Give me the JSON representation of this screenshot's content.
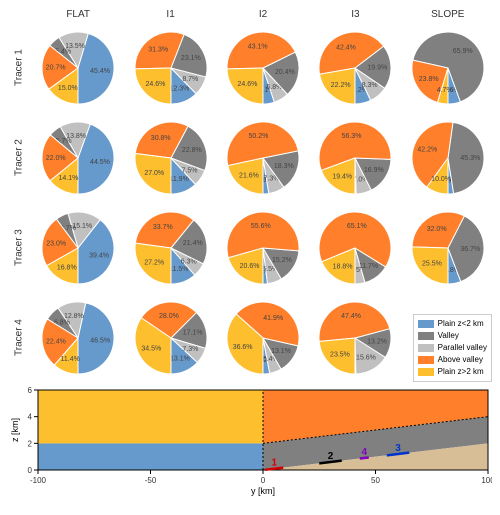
{
  "colors": {
    "plain_low": "#6699cc",
    "valley": "#808080",
    "parallel_valley": "#c0c0c0",
    "above_valley": "#ff7f2a",
    "plain_high": "#fdbf2d",
    "background": "#ffffff",
    "text": "#333333",
    "terrain_ground": "#d8be96"
  },
  "columns": [
    "FLAT",
    "I1",
    "I2",
    "I3",
    "SLOPE"
  ],
  "rows": [
    "Tracer 1",
    "Tracer 2",
    "Tracer 3",
    "Tracer 4"
  ],
  "legend": {
    "title": null,
    "items": [
      {
        "label": "Plain z<2 km",
        "color": "#6699cc"
      },
      {
        "label": "Valley",
        "color": "#808080"
      },
      {
        "label": "Parallel valley",
        "color": "#c0c0c0"
      },
      {
        "label": "Above valley",
        "color": "#ff7f2a"
      },
      {
        "label": "Plain z>2 km",
        "color": "#fdbf2d"
      }
    ]
  },
  "pies": {
    "type": "pie",
    "value_unit": "%",
    "label_fontsize": 7,
    "slice_order": [
      "plain_low",
      "parallel_valley",
      "valley",
      "above_valley",
      "plain_high"
    ],
    "data": [
      [
        {
          "plain_low": 45.4,
          "parallel_valley": 13.5,
          "valley": 5.4,
          "plain_high": 15.0,
          "above_valley": 20.7
        },
        {
          "plain_low": 12.3,
          "parallel_valley": 8.7,
          "valley": 23.1,
          "above_valley": 31.3,
          "plain_high": 24.6
        },
        {
          "plain_low": 5.1,
          "parallel_valley": 6.8,
          "valley": 20.4,
          "above_valley": 43.1,
          "plain_high": 24.6
        },
        {
          "plain_low": 7.2,
          "parallel_valley": 8.3,
          "valley": 19.9,
          "above_valley": 42.4,
          "plain_high": 22.2
        },
        {
          "plain_low": 5.6,
          "plain_high": 4.7,
          "valley": 65.9,
          "above_valley": 23.8
        }
      ],
      [
        {
          "plain_low": 44.5,
          "parallel_valley": 13.8,
          "valley": 5.7,
          "plain_high": 14.1,
          "above_valley": 22.0
        },
        {
          "plain_low": 11.9,
          "parallel_valley": 7.5,
          "valley": 22.8,
          "above_valley": 30.8,
          "plain_high": 27.0
        },
        {
          "plain_low": 2.6,
          "parallel_valley": 7.3,
          "valley": 18.3,
          "above_valley": 50.2,
          "plain_high": 21.6
        },
        {
          "plain_low": 0.5,
          "parallel_valley": 7.0,
          "valley": 16.9,
          "above_valley": 56.3,
          "plain_high": 19.4
        },
        {
          "plain_low": 2.5,
          "plain_high": 10.0,
          "valley": 45.3,
          "above_valley": 42.2
        }
      ],
      [
        {
          "plain_low": 39.4,
          "parallel_valley": 15.1,
          "valley": 5.7,
          "plain_high": 16.8,
          "above_valley": 23.0
        },
        {
          "plain_low": 11.5,
          "parallel_valley": 6.3,
          "valley": 21.4,
          "above_valley": 33.7,
          "plain_high": 27.2
        },
        {
          "plain_low": 2.0,
          "parallel_valley": 6.5,
          "valley": 15.2,
          "above_valley": 55.6,
          "plain_high": 20.6
        },
        {
          "plain_low": 0.0,
          "parallel_valley": 4.5,
          "valley": 11.7,
          "above_valley": 65.1,
          "plain_high": 18.8
        },
        {
          "plain_low": 5.8,
          "valley": 36.7,
          "above_valley": 32.0,
          "plain_high": 25.5
        }
      ],
      [
        {
          "plain_low": 46.5,
          "parallel_valley": 12.8,
          "valley": 6.8,
          "plain_high": 11.4,
          "above_valley": 22.4
        },
        {
          "plain_low": 13.1,
          "parallel_valley": 7.3,
          "valley": 17.1,
          "above_valley": 28.0,
          "plain_high": 34.5
        },
        {
          "plain_low": 3.0,
          "parallel_valley": 5.4,
          "valley": 13.1,
          "above_valley": 41.9,
          "plain_high": 36.6
        },
        {
          "plain_low": 0.4,
          "valley": 13.2,
          "parallel_valley": 15.6,
          "above_valley": 47.4,
          "plain_high": 23.5
        }
      ]
    ]
  },
  "terrain": {
    "type": "area",
    "xlabel": "y [km]",
    "ylabel": "z [km]",
    "xlim": [
      -100,
      100
    ],
    "ylim": [
      0,
      6
    ],
    "xticks": [
      -100,
      -50,
      0,
      50,
      100
    ],
    "yticks": [
      0,
      2,
      4,
      6
    ],
    "label_fontsize": 9,
    "tick_fontsize": 8,
    "regions": [
      {
        "name": "plain_low",
        "color": "#6699cc",
        "poly": [
          [
            -100,
            0
          ],
          [
            0,
            0
          ],
          [
            0,
            2
          ],
          [
            -100,
            2
          ]
        ]
      },
      {
        "name": "plain_high",
        "color": "#fdbf2d",
        "poly": [
          [
            -100,
            2
          ],
          [
            0,
            2
          ],
          [
            0,
            6
          ],
          [
            -100,
            6
          ]
        ]
      },
      {
        "name": "above_valley",
        "color": "#ff7f2a",
        "poly": [
          [
            0,
            2
          ],
          [
            100,
            4
          ],
          [
            100,
            6
          ],
          [
            0,
            6
          ]
        ]
      },
      {
        "name": "valley",
        "color": "#808080",
        "poly": [
          [
            0,
            0
          ],
          [
            100,
            2
          ],
          [
            100,
            4
          ],
          [
            0,
            2
          ]
        ]
      },
      {
        "name": "ground",
        "color": "#d8be96",
        "poly": [
          [
            0,
            0
          ],
          [
            100,
            0
          ],
          [
            100,
            2
          ]
        ]
      }
    ],
    "tracer_markers": [
      {
        "id": "1",
        "color": "#d40000",
        "x": 5,
        "width": 8
      },
      {
        "id": "2",
        "color": "#000000",
        "x": 30,
        "width": 10
      },
      {
        "id": "4",
        "color": "#8000c0",
        "x": 45,
        "width": 4
      },
      {
        "id": "3",
        "color": "#0033cc",
        "x": 60,
        "width": 10
      }
    ],
    "dashed_lines": [
      {
        "from": [
          0,
          0
        ],
        "to": [
          0,
          6
        ]
      },
      {
        "from": [
          0,
          2
        ],
        "to": [
          100,
          4
        ]
      }
    ]
  }
}
